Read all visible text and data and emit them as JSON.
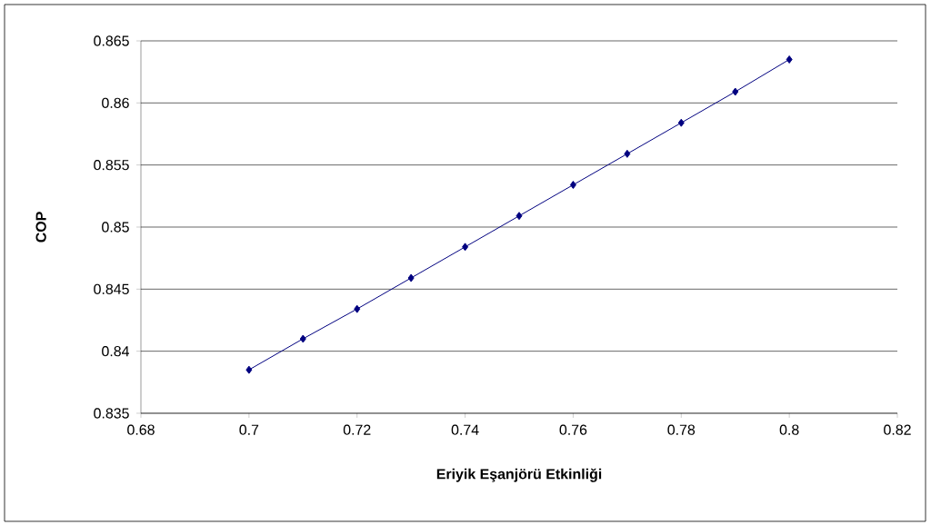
{
  "chart_data": {
    "type": "line",
    "xlabel": "Eriyik Eşanjörü Etkinliği",
    "ylabel": "COP",
    "x": [
      0.7,
      0.71,
      0.72,
      0.73,
      0.74,
      0.75,
      0.76,
      0.77,
      0.78,
      0.79,
      0.8
    ],
    "series": [
      {
        "color": "#000080",
        "values": [
          0.8385,
          0.841,
          0.8434,
          0.8459,
          0.8484,
          0.8509,
          0.8534,
          0.8559,
          0.8584,
          0.8609,
          0.8635
        ]
      }
    ],
    "xlim": [
      0.68,
      0.82
    ],
    "xticks": [
      0.68,
      0.7,
      0.72,
      0.74,
      0.76,
      0.78,
      0.8,
      0.82
    ],
    "ylim": [
      0.835,
      0.865
    ],
    "yticks": [
      0.835,
      0.84,
      0.845,
      0.85,
      0.855,
      0.86,
      0.865
    ],
    "grid": "y",
    "marker": "diamond",
    "line_style": "solid"
  }
}
